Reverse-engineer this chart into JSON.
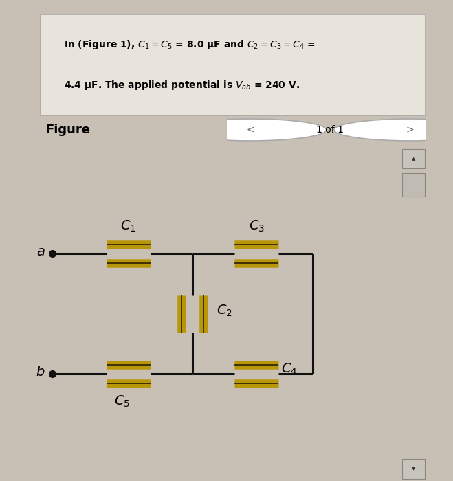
{
  "bg_color": "#c8c0b4",
  "text_box_bg": "#e8e4dc",
  "wire_color": "#111111",
  "cap_gold": "#b8960a",
  "cap_dark_edge": "#2a2000",
  "lw": 2.2,
  "cap_lw": 9.0,
  "title_line1": "In (Figure 1), $C_1 = C_5$ = 8.0 μF and $C_2 = C_3 = C_4$ =",
  "title_line2": "4.4 μF. The applied potential is $V_{ab}$ = 240 V.",
  "figure_label": "Figure",
  "page_label": "1 of 1",
  "cap_labels": [
    "$C_1$",
    "$C_2$",
    "$C_3$",
    "$C_4$",
    "$C_5$"
  ],
  "node_a": "$a$",
  "node_b": "$b$",
  "scrollbar_bg": "#a8a49c",
  "scrollbar_thumb": "#c0bcb4",
  "circuit_border": "#888880"
}
